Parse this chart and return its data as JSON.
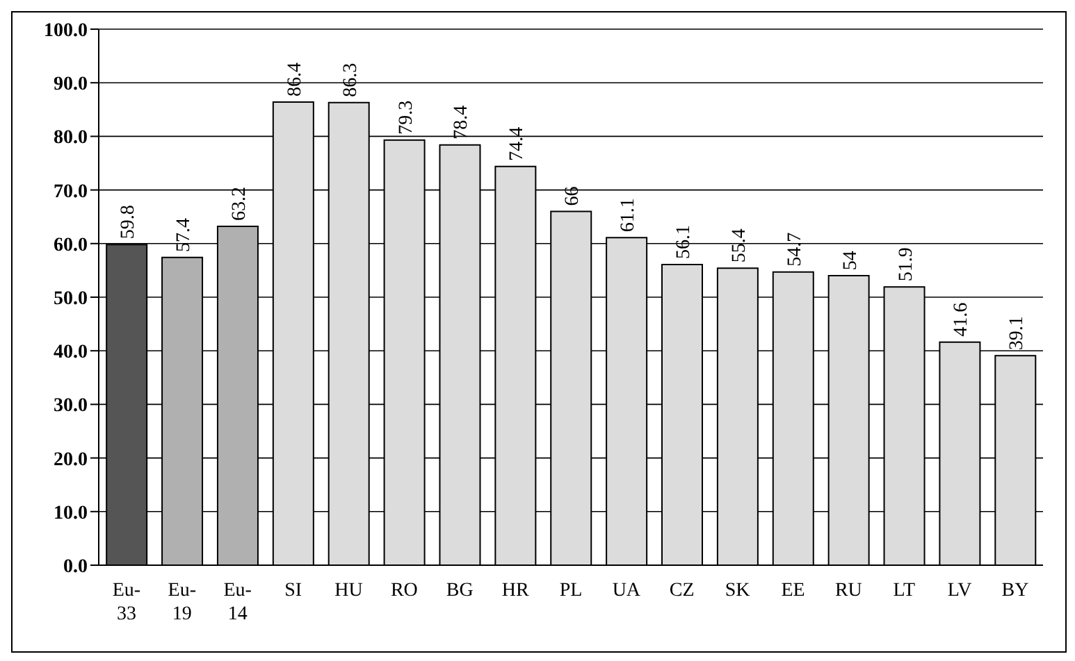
{
  "chart_data": {
    "type": "bar",
    "categories": [
      "Eu-33",
      "Eu-19",
      "Eu-14",
      "SI",
      "HU",
      "RO",
      "BG",
      "HR",
      "PL",
      "UA",
      "CZ",
      "SK",
      "EE",
      "RU",
      "LT",
      "LV",
      "BY"
    ],
    "values": [
      59.8,
      57.4,
      63.2,
      86.4,
      86.3,
      79.3,
      78.4,
      74.4,
      66,
      61.1,
      56.1,
      55.4,
      54.7,
      54,
      51.9,
      41.6,
      39.1
    ],
    "colors": [
      "#555555",
      "#b0b0b0",
      "#b0b0b0",
      "#dcdcdc",
      "#dcdcdc",
      "#dcdcdc",
      "#dcdcdc",
      "#dcdcdc",
      "#dcdcdc",
      "#dcdcdc",
      "#dcdcdc",
      "#dcdcdc",
      "#dcdcdc",
      "#dcdcdc",
      "#dcdcdc",
      "#dcdcdc",
      "#dcdcdc"
    ],
    "ylim": [
      0,
      100
    ],
    "yticks": [
      {
        "value": 0,
        "label": "0.0"
      },
      {
        "value": 10,
        "label": "10.0"
      },
      {
        "value": 20,
        "label": "20.0"
      },
      {
        "value": 30,
        "label": "30.0"
      },
      {
        "value": 40,
        "label": "40.0"
      },
      {
        "value": 50,
        "label": "50.0"
      },
      {
        "value": 60,
        "label": "60.0"
      },
      {
        "value": 70,
        "label": "70.0"
      },
      {
        "value": 80,
        "label": "80.0"
      },
      {
        "value": 90,
        "label": "90.0"
      },
      {
        "value": 100,
        "label": "100.0"
      }
    ],
    "grid": "y",
    "data_labels": true
  }
}
